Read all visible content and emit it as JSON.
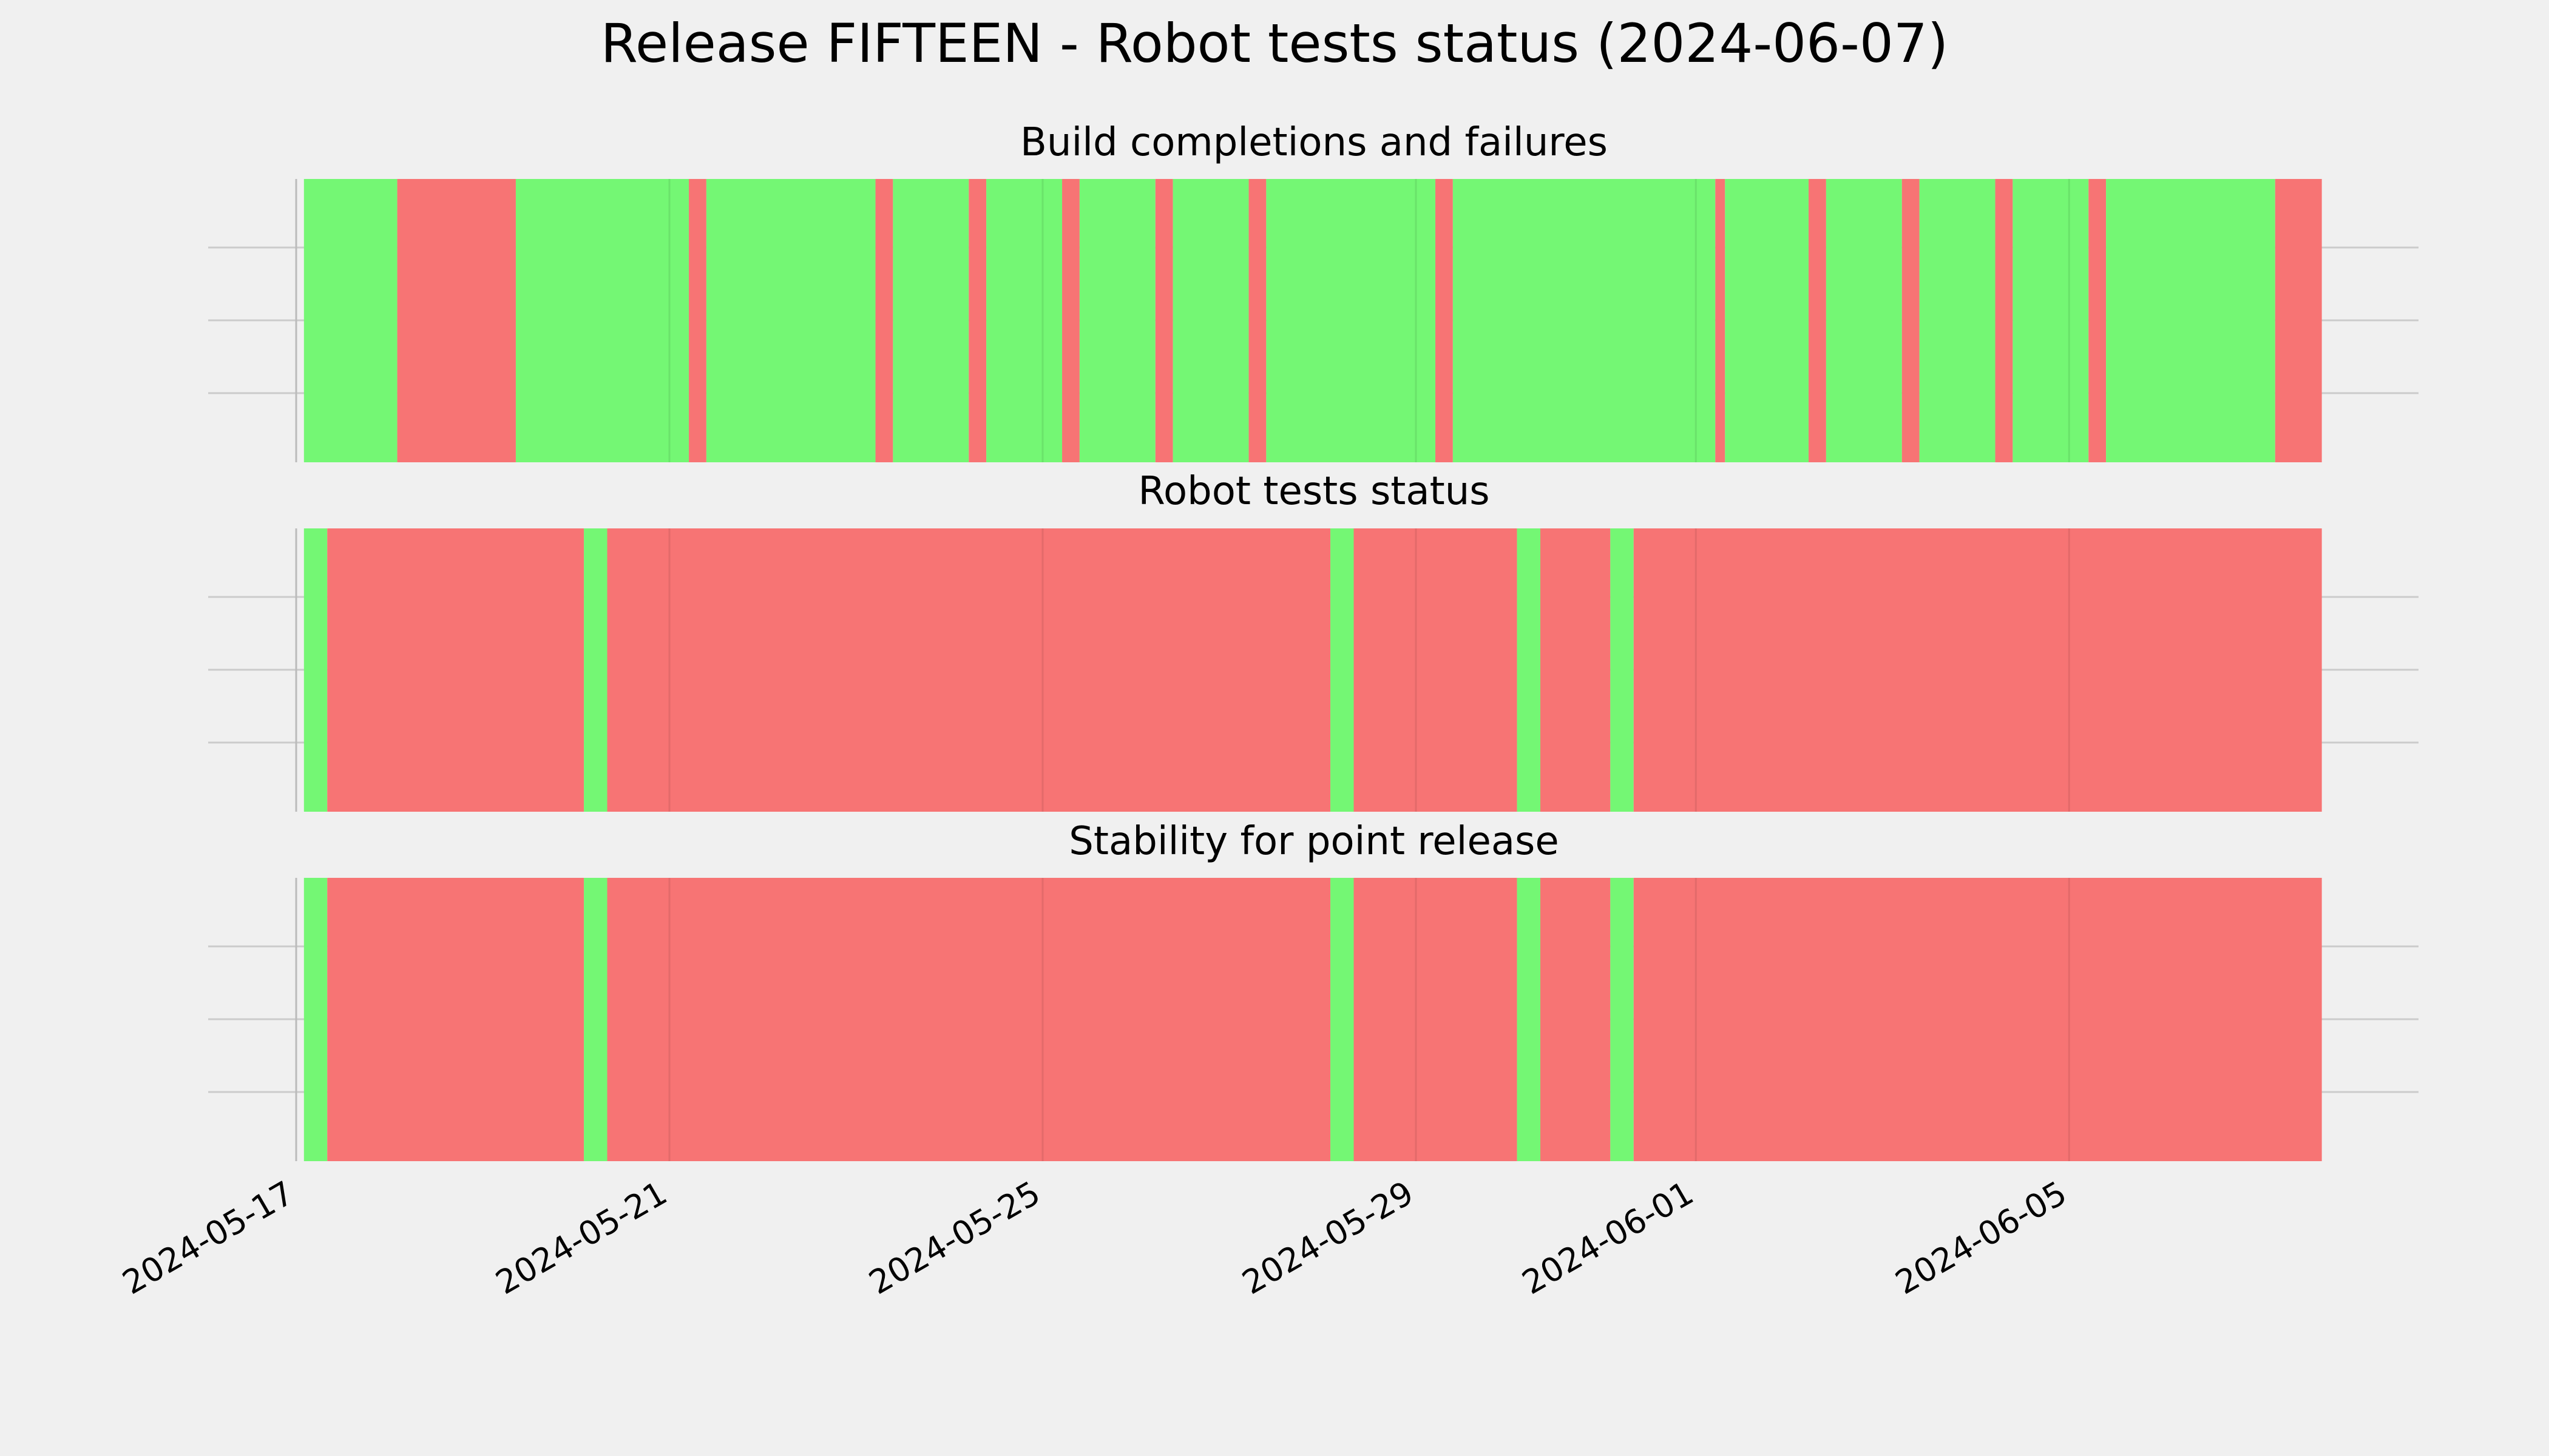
{
  "title": "Release FIFTEEN - Robot tests status (2024-06-07)",
  "colors": {
    "pass": "#74f774",
    "fail": "#f77474",
    "background": "#f0f0f0",
    "grid": "#cbcbcb"
  },
  "chart_data": {
    "type": "timeline",
    "x_axis": {
      "range": [
        "2024-05-17",
        "2024-06-07"
      ],
      "ticks": [
        "2024-05-17",
        "2024-05-21",
        "2024-05-25",
        "2024-05-29",
        "2024-06-01",
        "2024-06-05"
      ]
    },
    "grid": true,
    "panels": [
      {
        "title": "Build completions and failures",
        "segments": [
          {
            "start": "2024-05-17 02:00",
            "end": "2024-05-18 02:00",
            "status": "pass"
          },
          {
            "start": "2024-05-18 02:00",
            "end": "2024-05-19 08:30",
            "status": "fail"
          },
          {
            "start": "2024-05-19 08:30",
            "end": "2024-05-21 05:00",
            "status": "pass"
          },
          {
            "start": "2024-05-21 05:00",
            "end": "2024-05-21 09:30",
            "status": "fail"
          },
          {
            "start": "2024-05-21 09:30",
            "end": "2024-05-23 05:00",
            "status": "pass"
          },
          {
            "start": "2024-05-23 05:00",
            "end": "2024-05-23 09:30",
            "status": "fail"
          },
          {
            "start": "2024-05-23 09:30",
            "end": "2024-05-24 05:00",
            "status": "pass"
          },
          {
            "start": "2024-05-24 05:00",
            "end": "2024-05-24 09:30",
            "status": "fail"
          },
          {
            "start": "2024-05-24 09:30",
            "end": "2024-05-25 05:00",
            "status": "pass"
          },
          {
            "start": "2024-05-25 05:00",
            "end": "2024-05-25 09:30",
            "status": "fail"
          },
          {
            "start": "2024-05-25 09:30",
            "end": "2024-05-26 05:00",
            "status": "pass"
          },
          {
            "start": "2024-05-26 05:00",
            "end": "2024-05-26 09:30",
            "status": "fail"
          },
          {
            "start": "2024-05-26 09:30",
            "end": "2024-05-27 05:00",
            "status": "pass"
          },
          {
            "start": "2024-05-27 05:00",
            "end": "2024-05-27 09:30",
            "status": "fail"
          },
          {
            "start": "2024-05-27 09:30",
            "end": "2024-05-29 05:00",
            "status": "pass"
          },
          {
            "start": "2024-05-29 05:00",
            "end": "2024-05-29 09:30",
            "status": "fail"
          },
          {
            "start": "2024-05-29 09:30",
            "end": "2024-06-01 05:00",
            "status": "pass"
          },
          {
            "start": "2024-06-01 05:00",
            "end": "2024-06-01 07:30",
            "status": "fail"
          },
          {
            "start": "2024-06-01 07:30",
            "end": "2024-06-02 05:00",
            "status": "pass"
          },
          {
            "start": "2024-06-02 05:00",
            "end": "2024-06-02 09:30",
            "status": "fail"
          },
          {
            "start": "2024-06-02 09:30",
            "end": "2024-06-03 05:00",
            "status": "pass"
          },
          {
            "start": "2024-06-03 05:00",
            "end": "2024-06-03 09:30",
            "status": "fail"
          },
          {
            "start": "2024-06-03 09:30",
            "end": "2024-06-04 05:00",
            "status": "pass"
          },
          {
            "start": "2024-06-04 05:00",
            "end": "2024-06-04 09:30",
            "status": "fail"
          },
          {
            "start": "2024-06-04 09:30",
            "end": "2024-06-05 05:00",
            "status": "pass"
          },
          {
            "start": "2024-06-05 05:00",
            "end": "2024-06-05 09:30",
            "status": "fail"
          },
          {
            "start": "2024-06-05 09:30",
            "end": "2024-06-07 05:00",
            "status": "pass"
          },
          {
            "start": "2024-06-07 05:00",
            "end": "2024-06-07 17:00",
            "status": "fail"
          }
        ]
      },
      {
        "title": "Robot tests status",
        "segments": [
          {
            "start": "2024-05-17 02:00",
            "end": "2024-05-17 08:00",
            "status": "pass"
          },
          {
            "start": "2024-05-17 08:00",
            "end": "2024-05-20 02:00",
            "status": "fail"
          },
          {
            "start": "2024-05-20 02:00",
            "end": "2024-05-20 08:00",
            "status": "pass"
          },
          {
            "start": "2024-05-20 08:00",
            "end": "2024-05-28 02:00",
            "status": "fail"
          },
          {
            "start": "2024-05-28 02:00",
            "end": "2024-05-28 08:00",
            "status": "pass"
          },
          {
            "start": "2024-05-28 08:00",
            "end": "2024-05-30 02:00",
            "status": "fail"
          },
          {
            "start": "2024-05-30 02:00",
            "end": "2024-05-30 08:00",
            "status": "pass"
          },
          {
            "start": "2024-05-30 08:00",
            "end": "2024-05-31 02:00",
            "status": "fail"
          },
          {
            "start": "2024-05-31 02:00",
            "end": "2024-05-31 08:00",
            "status": "pass"
          },
          {
            "start": "2024-05-31 08:00",
            "end": "2024-06-07 17:00",
            "status": "fail"
          }
        ]
      },
      {
        "title": "Stability for point release",
        "segments": [
          {
            "start": "2024-05-17 02:00",
            "end": "2024-05-17 08:00",
            "status": "pass"
          },
          {
            "start": "2024-05-17 08:00",
            "end": "2024-05-20 02:00",
            "status": "fail"
          },
          {
            "start": "2024-05-20 02:00",
            "end": "2024-05-20 08:00",
            "status": "pass"
          },
          {
            "start": "2024-05-20 08:00",
            "end": "2024-05-28 02:00",
            "status": "fail"
          },
          {
            "start": "2024-05-28 02:00",
            "end": "2024-05-28 08:00",
            "status": "pass"
          },
          {
            "start": "2024-05-28 08:00",
            "end": "2024-05-30 02:00",
            "status": "fail"
          },
          {
            "start": "2024-05-30 02:00",
            "end": "2024-05-30 08:00",
            "status": "pass"
          },
          {
            "start": "2024-05-30 08:00",
            "end": "2024-05-31 02:00",
            "status": "fail"
          },
          {
            "start": "2024-05-31 02:00",
            "end": "2024-05-31 08:00",
            "status": "pass"
          },
          {
            "start": "2024-05-31 08:00",
            "end": "2024-06-07 17:00",
            "status": "fail"
          }
        ]
      }
    ]
  }
}
